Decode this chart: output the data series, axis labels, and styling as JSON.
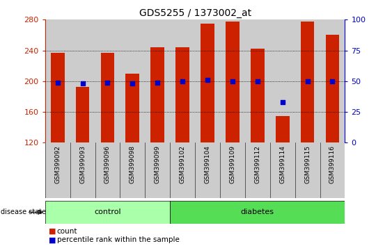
{
  "title": "GDS5255 / 1373002_at",
  "samples": [
    "GSM399092",
    "GSM399093",
    "GSM399096",
    "GSM399098",
    "GSM399099",
    "GSM399102",
    "GSM399104",
    "GSM399109",
    "GSM399112",
    "GSM399114",
    "GSM399115",
    "GSM399116"
  ],
  "counts": [
    237,
    193,
    237,
    210,
    244,
    244,
    275,
    278,
    242,
    155,
    278,
    260
  ],
  "percentile_ranks": [
    49,
    48,
    49,
    48,
    49,
    50,
    51,
    50,
    50,
    33,
    50,
    50
  ],
  "groups": [
    "control",
    "control",
    "control",
    "control",
    "control",
    "diabetes",
    "diabetes",
    "diabetes",
    "diabetes",
    "diabetes",
    "diabetes",
    "diabetes"
  ],
  "y_min": 120,
  "y_max": 280,
  "y_ticks": [
    120,
    160,
    200,
    240,
    280
  ],
  "right_y_ticks": [
    0,
    25,
    50,
    75,
    100
  ],
  "bar_color": "#cc2200",
  "dot_color": "#0000cc",
  "control_color": "#aaffaa",
  "diabetes_color": "#55dd55",
  "col_bg_color": "#cccccc",
  "bar_width": 0.55,
  "legend_count": "count",
  "legend_percentile": "percentile rank within the sample",
  "group_label": "disease state"
}
